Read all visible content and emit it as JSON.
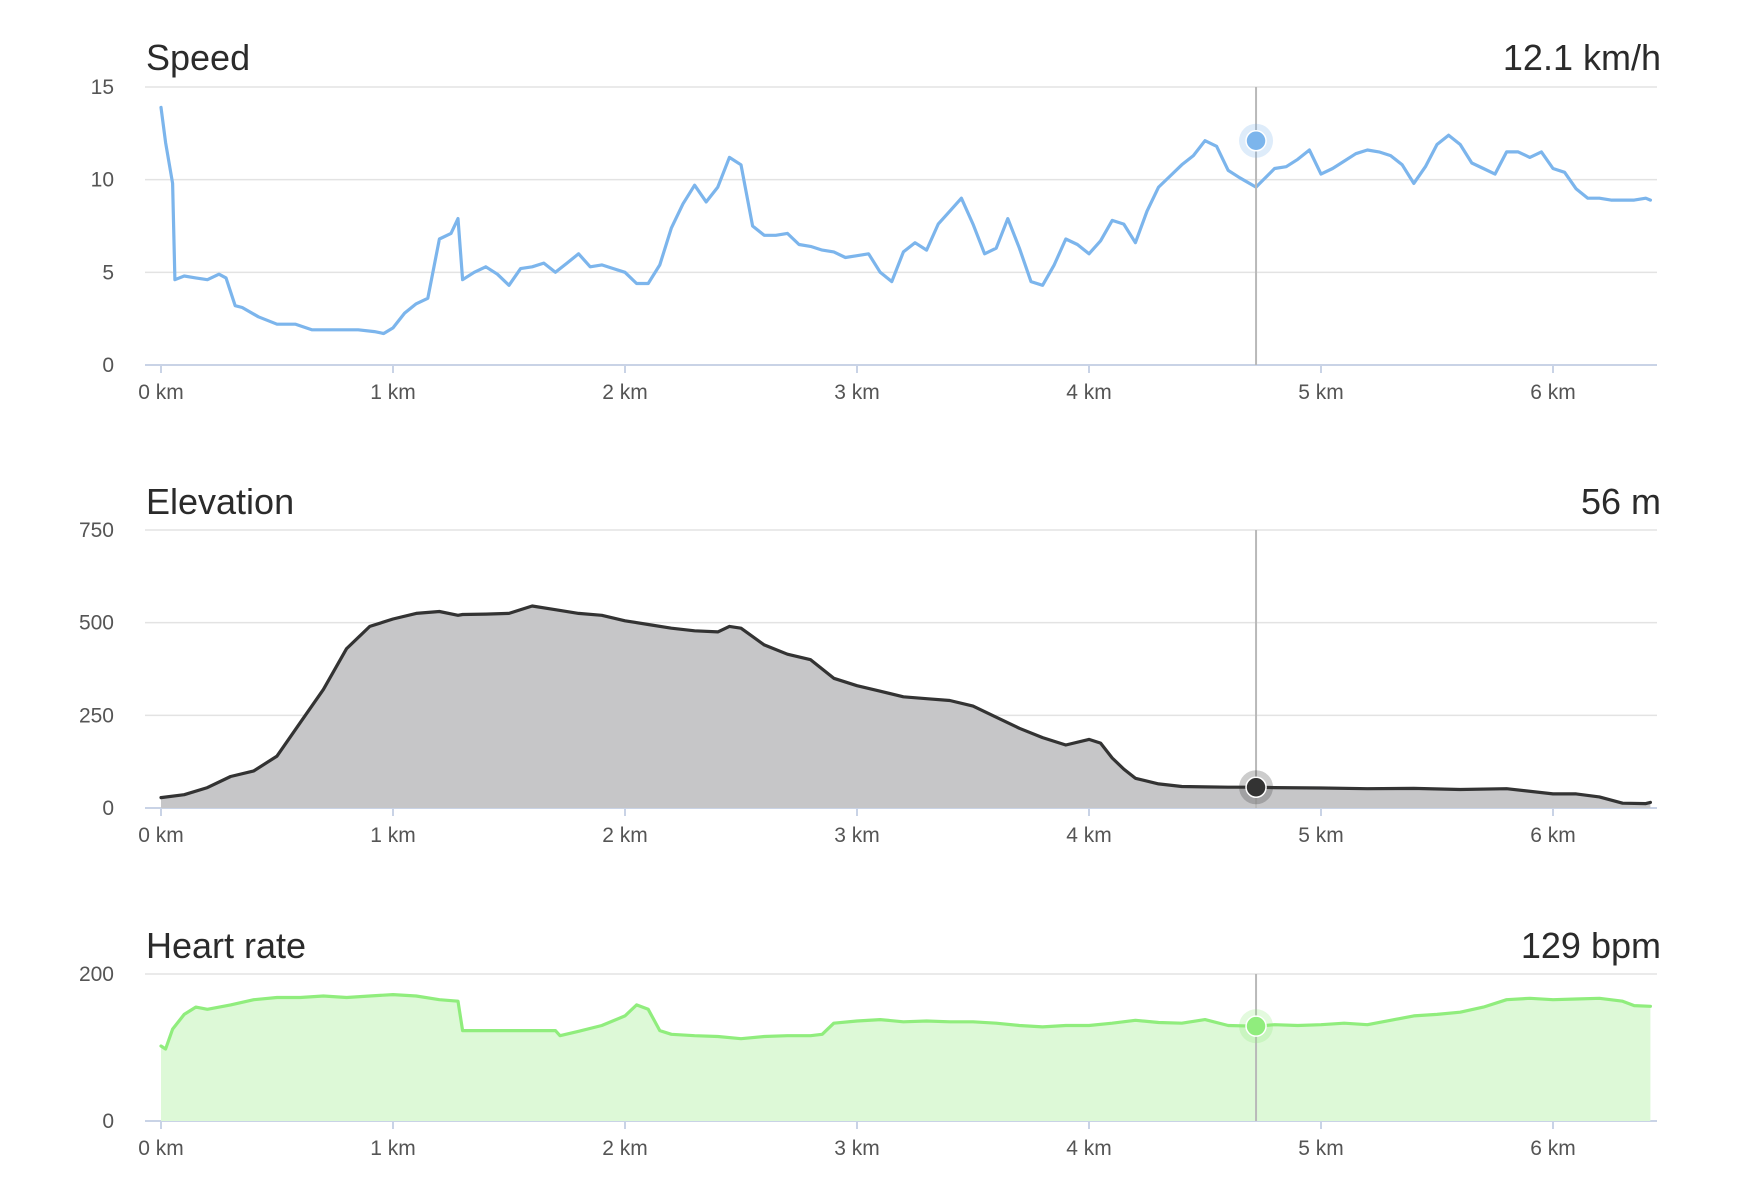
{
  "chart_data": [
    {
      "type": "line",
      "title": "Speed",
      "value_readout": "12.1 km/h",
      "xlabel": "",
      "ylabel": "",
      "xlim": [
        0,
        6.45
      ],
      "ylim": [
        0,
        15
      ],
      "x_ticks": [
        "0 km",
        "1 km",
        "2 km",
        "3 km",
        "4 km",
        "5 km",
        "6 km"
      ],
      "y_ticks": [
        "0",
        "5",
        "10",
        "15"
      ],
      "grid": true,
      "color": "#7cb5ec",
      "fill": false,
      "cursor": {
        "x": 4.72,
        "y": 12.1
      },
      "series": [
        {
          "x": [
            0,
            0.02,
            0.05,
            0.06,
            0.1,
            0.15,
            0.2,
            0.25,
            0.28,
            0.32,
            0.35,
            0.42,
            0.5,
            0.58,
            0.65,
            0.75,
            0.85,
            0.92,
            0.96,
            1.0,
            1.05,
            1.1,
            1.15,
            1.2,
            1.25,
            1.28,
            1.3,
            1.35,
            1.4,
            1.45,
            1.5,
            1.55,
            1.6,
            1.65,
            1.7,
            1.75,
            1.8,
            1.85,
            1.9,
            1.95,
            2.0,
            2.05,
            2.1,
            2.15,
            2.2,
            2.25,
            2.3,
            2.35,
            2.4,
            2.45,
            2.5,
            2.55,
            2.6,
            2.65,
            2.7,
            2.75,
            2.8,
            2.85,
            2.9,
            2.95,
            3.0,
            3.05,
            3.1,
            3.15,
            3.2,
            3.25,
            3.3,
            3.35,
            3.4,
            3.45,
            3.5,
            3.55,
            3.6,
            3.65,
            3.7,
            3.75,
            3.8,
            3.85,
            3.9,
            3.95,
            4.0,
            4.05,
            4.1,
            4.15,
            4.2,
            4.25,
            4.3,
            4.35,
            4.4,
            4.45,
            4.5,
            4.55,
            4.6,
            4.65,
            4.72,
            4.8,
            4.85,
            4.9,
            4.95,
            5.0,
            5.05,
            5.1,
            5.15,
            5.2,
            5.25,
            5.3,
            5.35,
            5.4,
            5.45,
            5.5,
            5.55,
            5.6,
            5.65,
            5.7,
            5.75,
            5.8,
            5.85,
            5.9,
            5.95,
            6.0,
            6.05,
            6.1,
            6.15,
            6.2,
            6.25,
            6.3,
            6.35,
            6.4,
            6.42
          ],
          "y": [
            13.9,
            12.0,
            9.8,
            4.6,
            4.8,
            4.7,
            4.6,
            4.9,
            4.7,
            3.2,
            3.1,
            2.6,
            2.2,
            2.2,
            1.9,
            1.9,
            1.9,
            1.8,
            1.7,
            2.0,
            2.8,
            3.3,
            3.6,
            6.8,
            7.1,
            7.9,
            4.6,
            5.0,
            5.3,
            4.9,
            4.3,
            5.2,
            5.3,
            5.5,
            5.0,
            5.5,
            6.0,
            5.3,
            5.4,
            5.2,
            5.0,
            4.4,
            4.4,
            5.4,
            7.4,
            8.7,
            9.7,
            8.8,
            9.6,
            11.2,
            10.8,
            7.5,
            7.0,
            7.0,
            7.1,
            6.5,
            6.4,
            6.2,
            6.1,
            5.8,
            5.9,
            6.0,
            5.0,
            4.5,
            6.1,
            6.6,
            6.2,
            7.6,
            8.3,
            9.0,
            7.6,
            6.0,
            6.3,
            7.9,
            6.3,
            4.5,
            4.3,
            5.4,
            6.8,
            6.5,
            6.0,
            6.7,
            7.8,
            7.6,
            6.6,
            8.3,
            9.6,
            10.2,
            10.8,
            11.3,
            12.1,
            11.8,
            10.5,
            10.1,
            9.6,
            10.6,
            10.7,
            11.1,
            11.6,
            10.3,
            10.6,
            11.0,
            11.4,
            11.6,
            11.5,
            11.3,
            10.8,
            9.8,
            10.7,
            11.9,
            12.4,
            11.9,
            10.9,
            10.6,
            10.3,
            11.5,
            11.5,
            11.2,
            11.5,
            10.6,
            10.4,
            9.5,
            9.0,
            9.0,
            8.9,
            8.9,
            8.9,
            9.0,
            8.9
          ]
        }
      ]
    },
    {
      "type": "area",
      "title": "Elevation",
      "value_readout": "56 m",
      "xlabel": "",
      "ylabel": "",
      "xlim": [
        0,
        6.45
      ],
      "ylim": [
        0,
        750
      ],
      "x_ticks": [
        "0 km",
        "1 km",
        "2 km",
        "3 km",
        "4 km",
        "5 km",
        "6 km"
      ],
      "y_ticks": [
        "0",
        "250",
        "500",
        "750"
      ],
      "grid": true,
      "color": "#333333",
      "fill_color": "#c6c6c8",
      "cursor": {
        "x": 4.72,
        "y": 56
      },
      "series": [
        {
          "x": [
            0,
            0.1,
            0.2,
            0.3,
            0.4,
            0.5,
            0.6,
            0.7,
            0.8,
            0.9,
            1.0,
            1.1,
            1.2,
            1.28,
            1.3,
            1.4,
            1.5,
            1.6,
            1.7,
            1.8,
            1.9,
            2.0,
            2.1,
            2.2,
            2.3,
            2.4,
            2.45,
            2.5,
            2.6,
            2.7,
            2.8,
            2.9,
            3.0,
            3.1,
            3.2,
            3.3,
            3.4,
            3.5,
            3.6,
            3.7,
            3.8,
            3.9,
            4.0,
            4.05,
            4.1,
            4.15,
            4.2,
            4.3,
            4.4,
            4.5,
            4.6,
            4.72,
            4.8,
            5.0,
            5.2,
            5.4,
            5.6,
            5.8,
            6.0,
            6.1,
            6.2,
            6.3,
            6.4,
            6.42
          ],
          "y": [
            28,
            36,
            55,
            85,
            100,
            140,
            230,
            320,
            430,
            490,
            510,
            525,
            530,
            520,
            522,
            523,
            525,
            545,
            535,
            525,
            520,
            505,
            495,
            485,
            478,
            475,
            490,
            485,
            440,
            415,
            400,
            350,
            330,
            315,
            300,
            295,
            290,
            275,
            245,
            215,
            190,
            170,
            185,
            175,
            135,
            105,
            80,
            65,
            58,
            57,
            56,
            56,
            55,
            54,
            52,
            53,
            50,
            52,
            38,
            38,
            30,
            13,
            12,
            15
          ]
        }
      ]
    },
    {
      "type": "area",
      "title": "Heart rate",
      "value_readout": "129 bpm",
      "xlabel": "",
      "ylabel": "",
      "xlim": [
        0,
        6.45
      ],
      "ylim": [
        0,
        200
      ],
      "x_ticks": [
        "0 km",
        "1 km",
        "2 km",
        "3 km",
        "4 km",
        "5 km",
        "6 km"
      ],
      "y_ticks": [
        "0",
        "200"
      ],
      "grid": true,
      "color": "#90ed7d",
      "fill_color": "#ddf9d7",
      "cursor": {
        "x": 4.72,
        "y": 129
      },
      "series": [
        {
          "x": [
            0,
            0.02,
            0.05,
            0.1,
            0.15,
            0.2,
            0.3,
            0.4,
            0.5,
            0.6,
            0.7,
            0.8,
            0.9,
            1.0,
            1.1,
            1.2,
            1.28,
            1.3,
            1.4,
            1.5,
            1.6,
            1.7,
            1.72,
            1.8,
            1.9,
            2.0,
            2.05,
            2.1,
            2.15,
            2.2,
            2.3,
            2.4,
            2.5,
            2.6,
            2.7,
            2.8,
            2.85,
            2.9,
            3.0,
            3.1,
            3.2,
            3.3,
            3.4,
            3.5,
            3.6,
            3.7,
            3.8,
            3.9,
            4.0,
            4.1,
            4.2,
            4.3,
            4.4,
            4.5,
            4.6,
            4.72,
            4.8,
            4.9,
            5.0,
            5.1,
            5.2,
            5.3,
            5.4,
            5.5,
            5.6,
            5.7,
            5.8,
            5.9,
            6.0,
            6.1,
            6.2,
            6.3,
            6.35,
            6.42
          ],
          "y": [
            102,
            98,
            125,
            145,
            155,
            152,
            158,
            165,
            168,
            168,
            170,
            168,
            170,
            172,
            170,
            165,
            163,
            123,
            123,
            123,
            123,
            123,
            116,
            122,
            130,
            143,
            158,
            152,
            123,
            118,
            116,
            115,
            112,
            115,
            116,
            116,
            118,
            133,
            136,
            138,
            135,
            136,
            135,
            135,
            133,
            130,
            128,
            130,
            130,
            133,
            137,
            134,
            133,
            138,
            130,
            129,
            131,
            130,
            131,
            133,
            131,
            137,
            143,
            145,
            148,
            155,
            165,
            167,
            165,
            166,
            167,
            163,
            157,
            156
          ]
        }
      ]
    }
  ]
}
